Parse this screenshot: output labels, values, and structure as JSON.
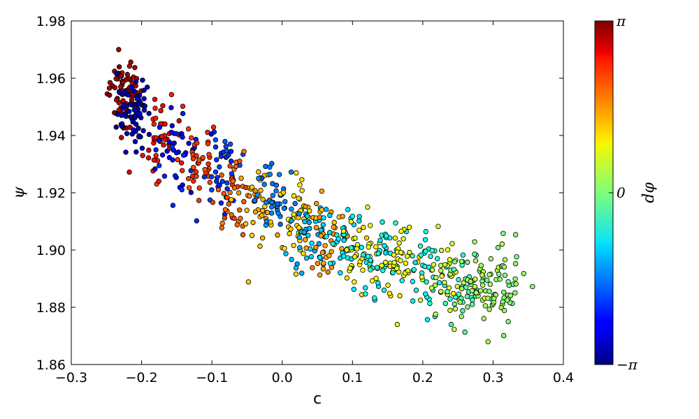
{
  "chart_data": {
    "type": "scatter",
    "title": "",
    "xlabel": "c",
    "ylabel": "ψ",
    "colorbar_label": "dφ",
    "xlim": [
      -0.3,
      0.4
    ],
    "ylim": [
      1.86,
      1.98
    ],
    "xticks": [
      -0.3,
      -0.2,
      -0.1,
      0.0,
      0.1,
      0.2,
      0.3,
      0.4
    ],
    "xtick_labels": [
      "−0.3",
      "−0.2",
      "−0.1",
      "0.0",
      "0.1",
      "0.2",
      "0.3",
      "0.4"
    ],
    "yticks": [
      1.86,
      1.88,
      1.9,
      1.92,
      1.94,
      1.96,
      1.98
    ],
    "ytick_labels": [
      "1.86",
      "1.88",
      "1.90",
      "1.92",
      "1.94",
      "1.96",
      "1.98"
    ],
    "colorbar_ticks": [
      "π",
      "0",
      "−π"
    ],
    "color_range": [
      -3.14159,
      3.14159
    ],
    "colormap": "jet",
    "grid": false,
    "clusters": [
      {
        "c": -0.225,
        "psi": 1.955,
        "dphi": 2.9
      },
      {
        "c": -0.21,
        "psi": 1.948,
        "dphi": -2.8
      },
      {
        "c": -0.17,
        "psi": 1.938,
        "dphi": 2.3
      },
      {
        "c": -0.15,
        "psi": 1.934,
        "dphi": -2.3
      },
      {
        "c": -0.12,
        "psi": 1.932,
        "dphi": 2.0
      },
      {
        "c": -0.09,
        "psi": 1.928,
        "dphi": -2.0
      },
      {
        "c": -0.07,
        "psi": 1.921,
        "dphi": 1.8
      },
      {
        "c": -0.04,
        "psi": 1.917,
        "dphi": 1.2
      },
      {
        "c": -0.01,
        "psi": 1.917,
        "dphi": -1.6
      },
      {
        "c": 0.02,
        "psi": 1.912,
        "dphi": 1.0
      },
      {
        "c": 0.04,
        "psi": 1.907,
        "dphi": -1.2
      },
      {
        "c": 0.06,
        "psi": 1.904,
        "dphi": 1.3
      },
      {
        "c": 0.09,
        "psi": 1.902,
        "dphi": -0.9
      },
      {
        "c": 0.11,
        "psi": 1.899,
        "dphi": 0.8
      },
      {
        "c": 0.14,
        "psi": 1.898,
        "dphi": -0.7
      },
      {
        "c": 0.17,
        "psi": 1.896,
        "dphi": 0.7
      },
      {
        "c": 0.21,
        "psi": 1.891,
        "dphi": -0.6
      },
      {
        "c": 0.23,
        "psi": 1.889,
        "dphi": 0.5
      },
      {
        "c": 0.26,
        "psi": 1.888,
        "dphi": -0.3
      },
      {
        "c": 0.29,
        "psi": 1.886,
        "dphi": 0.25
      },
      {
        "c": 0.32,
        "psi": 1.885,
        "dphi": 0.05
      }
    ]
  }
}
